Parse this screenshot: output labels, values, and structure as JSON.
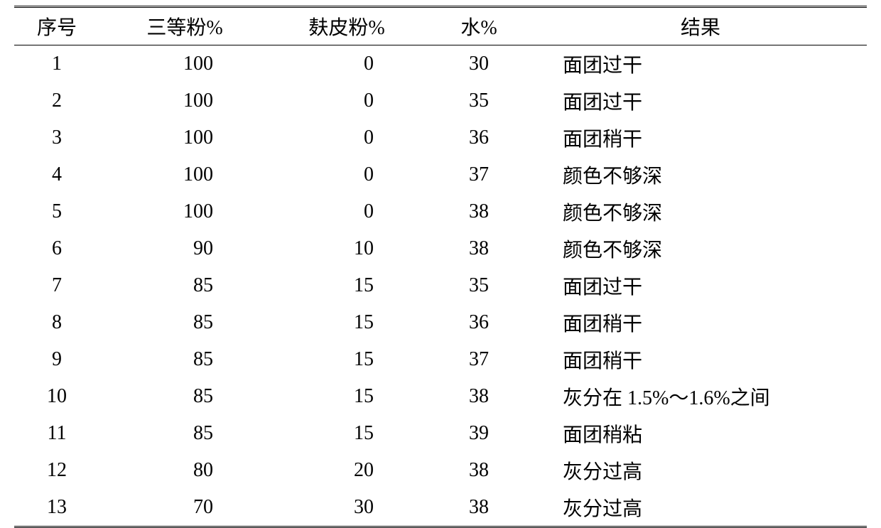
{
  "table": {
    "columns": [
      {
        "key": "seq",
        "label": "序号"
      },
      {
        "key": "flour",
        "label": "三等粉%"
      },
      {
        "key": "bran",
        "label": "麸皮粉%"
      },
      {
        "key": "water",
        "label": "水%"
      },
      {
        "key": "result",
        "label": "结果"
      }
    ],
    "rows": [
      {
        "seq": "1",
        "flour": "100",
        "bran": "0",
        "water": "30",
        "result": "面团过干"
      },
      {
        "seq": "2",
        "flour": "100",
        "bran": "0",
        "water": "35",
        "result": "面团过干"
      },
      {
        "seq": "3",
        "flour": "100",
        "bran": "0",
        "water": "36",
        "result": "面团稍干"
      },
      {
        "seq": "4",
        "flour": "100",
        "bran": "0",
        "water": "37",
        "result": "颜色不够深"
      },
      {
        "seq": "5",
        "flour": "100",
        "bran": "0",
        "water": "38",
        "result": "颜色不够深"
      },
      {
        "seq": "6",
        "flour": "90",
        "bran": "10",
        "water": "38",
        "result": "颜色不够深"
      },
      {
        "seq": "7",
        "flour": "85",
        "bran": "15",
        "water": "35",
        "result": "面团过干"
      },
      {
        "seq": "8",
        "flour": "85",
        "bran": "15",
        "water": "36",
        "result": "面团稍干"
      },
      {
        "seq": "9",
        "flour": "85",
        "bran": "15",
        "water": "37",
        "result": "面团稍干"
      },
      {
        "seq": "10",
        "flour": "85",
        "bran": "15",
        "water": "38",
        "result": "灰分在 1.5%～1.6%之间"
      },
      {
        "seq": "11",
        "flour": "85",
        "bran": "15",
        "water": "39",
        "result": "面团稍粘"
      },
      {
        "seq": "12",
        "flour": "80",
        "bran": "20",
        "water": "38",
        "result": "灰分过高"
      },
      {
        "seq": "13",
        "flour": "70",
        "bran": "30",
        "water": "38",
        "result": "灰分过高"
      }
    ],
    "style": {
      "text_color": "#000000",
      "background_color": "#ffffff",
      "border_color": "#000000",
      "header_fontsize": 28,
      "cell_fontsize": 28,
      "font_family": "SimSun",
      "top_border": "double",
      "bottom_border": "double",
      "header_bottom_border": "solid"
    }
  }
}
